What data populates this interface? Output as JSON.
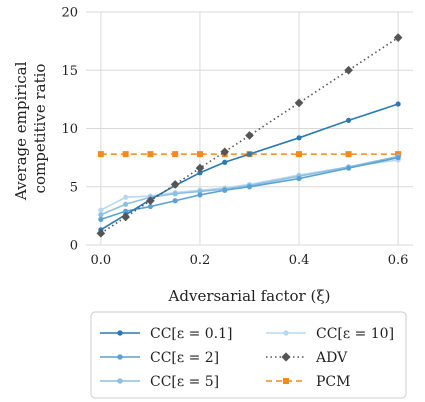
{
  "chart_data": {
    "type": "line",
    "xlabel": "Adversarial factor (ξ)",
    "ylabel_lines": [
      "Average empirical",
      "competitive ratio"
    ],
    "xlim": [
      -0.03,
      0.63
    ],
    "ylim": [
      0,
      20
    ],
    "xticks": [
      0.0,
      0.2,
      0.4,
      0.6
    ],
    "xtick_labels": [
      "0.0",
      "0.2",
      "0.4",
      "0.6"
    ],
    "yticks": [
      0,
      5,
      10,
      15,
      20
    ],
    "ytick_labels": [
      "0",
      "5",
      "10",
      "15",
      "20"
    ],
    "grid": true,
    "legend_placement": "bottom",
    "series": [
      {
        "name": "CC[ε = 0.1]",
        "color": "#2a7ab5",
        "marker": "circle",
        "line_style": "solid",
        "x": [
          0.0,
          0.05,
          0.1,
          0.15,
          0.2,
          0.25,
          0.3,
          0.4,
          0.5,
          0.6
        ],
        "y": [
          1.3,
          2.6,
          3.9,
          5.1,
          6.2,
          7.1,
          7.8,
          9.2,
          10.7,
          12.1
        ]
      },
      {
        "name": "CC[ε = 2]",
        "color": "#5ba2d4",
        "marker": "circle",
        "line_style": "solid",
        "x": [
          0.0,
          0.05,
          0.1,
          0.15,
          0.2,
          0.25,
          0.3,
          0.4,
          0.5,
          0.6
        ],
        "y": [
          2.2,
          2.9,
          3.3,
          3.8,
          4.3,
          4.7,
          5.0,
          5.7,
          6.6,
          7.5
        ]
      },
      {
        "name": "CC[ε = 5]",
        "color": "#8ebfe2",
        "marker": "circle",
        "line_style": "solid",
        "x": [
          0.0,
          0.05,
          0.1,
          0.15,
          0.2,
          0.25,
          0.3,
          0.4,
          0.5,
          0.6
        ],
        "y": [
          2.6,
          3.5,
          4.1,
          4.4,
          4.6,
          4.8,
          5.1,
          5.9,
          6.7,
          7.6
        ]
      },
      {
        "name": "CC[ε = 10]",
        "color": "#b9d8ef",
        "marker": "circle",
        "line_style": "solid",
        "x": [
          0.0,
          0.05,
          0.1,
          0.15,
          0.2,
          0.25,
          0.3,
          0.4,
          0.5,
          0.6
        ],
        "y": [
          3.0,
          4.1,
          4.2,
          4.5,
          4.7,
          4.9,
          5.2,
          6.0,
          6.7,
          7.3
        ]
      },
      {
        "name": "ADV",
        "color": "#555555",
        "marker": "diamond",
        "line_style": "dotted",
        "x": [
          0.0,
          0.05,
          0.1,
          0.15,
          0.2,
          0.25,
          0.3,
          0.4,
          0.5,
          0.6
        ],
        "y": [
          1.0,
          2.4,
          3.8,
          5.2,
          6.6,
          8.0,
          9.4,
          12.2,
          15.0,
          17.8
        ]
      },
      {
        "name": "PCM",
        "color": "#f28a1e",
        "marker": "square",
        "line_style": "dashed",
        "x": [
          0.0,
          0.05,
          0.1,
          0.15,
          0.2,
          0.25,
          0.3,
          0.4,
          0.5,
          0.6
        ],
        "y": [
          7.8,
          7.8,
          7.8,
          7.8,
          7.8,
          7.8,
          7.8,
          7.8,
          7.8,
          7.8
        ]
      }
    ]
  }
}
